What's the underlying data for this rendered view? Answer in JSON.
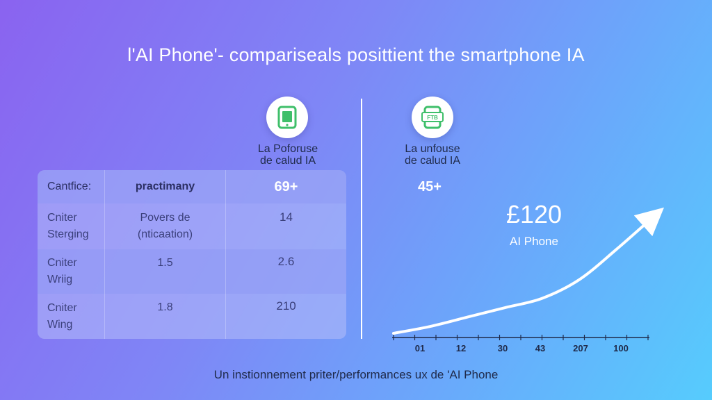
{
  "title": "l'AI Phone'- compariseals posittient the smartphone IA",
  "left_column": {
    "icon": "tablet-icon",
    "label_line1": "La Poforuse",
    "label_line2": "de calud IA"
  },
  "right_column": {
    "icon": "phone-chip-icon",
    "icon_text": "FTB",
    "label_line1": "La unfouse",
    "label_line2": "de calud IA",
    "value": "45+"
  },
  "table": {
    "header": {
      "label": "Cantfice:",
      "col2": "practimany",
      "col3": "69+"
    },
    "rows": [
      {
        "label_line1": "Cniter",
        "label_line2": "Sterging",
        "col2_line1": "Povers de",
        "col2_line2": "(nticaation)",
        "col3": "14"
      },
      {
        "label_line1": "Cniter",
        "label_line2": "Wriig",
        "col2_line1": "1.5",
        "col2_line2": "",
        "col3": "2.6"
      },
      {
        "label_line1": "Cniter",
        "label_line2": "Wing",
        "col2_line1": "1.8",
        "col2_line2": "",
        "col3": "210"
      }
    ]
  },
  "price": {
    "value": "£120",
    "label": "AI Phone"
  },
  "chart_data": {
    "type": "line",
    "x_ticks": [
      "01",
      "12",
      "30",
      "43",
      "207",
      "100"
    ],
    "series": [
      {
        "name": "AI Phone",
        "values": [
          0,
          6,
          14,
          22,
          30,
          46,
          72,
          100
        ]
      }
    ]
  },
  "footer": "Un instionnement priter/performances ux de 'AI Phone"
}
